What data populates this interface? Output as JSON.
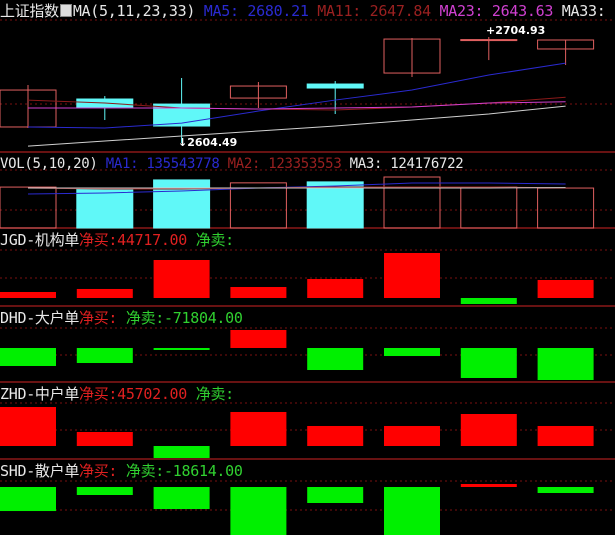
{
  "header": {
    "index_name": "上证指数",
    "ma_title": "MA(5,11,23,33)",
    "ma5": "MA5: 2680.21",
    "ma11": "MA11: 2647.84",
    "ma23": "MA23: 2643.63",
    "ma33": "MA33:",
    "high_marker": "+2704.93",
    "low_marker": "↓2604.49"
  },
  "vol_header": {
    "title": "VOL(5,10,20)",
    "ma1": "MA1: 135543778",
    "ma2": "MA2: 123353553",
    "ma3": "MA3: 124176722"
  },
  "panels": [
    {
      "name": "JGD-机构单",
      "buy_label": "净买:",
      "buy_value": "44717.00",
      "sell_label": "净卖:",
      "sell_value": ""
    },
    {
      "name": "DHD-大户单",
      "buy_label": "净买:",
      "buy_value": "",
      "sell_label": "净卖:",
      "sell_value": "-71804.00"
    },
    {
      "name": "ZHD-中户单",
      "buy_label": "净买:",
      "buy_value": "45702.00",
      "sell_label": "净卖:",
      "sell_value": ""
    },
    {
      "name": "SHD-散户单",
      "buy_label": "净买:",
      "buy_value": "",
      "sell_label": "净卖:",
      "sell_value": "-18614.00"
    }
  ],
  "colors": {
    "up": "#e06060",
    "down": "#60f8f8",
    "ma5": "#2a2ad0",
    "ma11": "#8b1a1a",
    "ma23": "#d040d0",
    "ma33": "#d0d0d0",
    "buy": "#ff0000",
    "sell": "#00f000",
    "grid": "#7a1010"
  },
  "chart_data": [
    {
      "type": "candlestick",
      "title": "上证指数",
      "ylim": [
        2596,
        2740
      ],
      "candles": [
        {
          "open": 2619.7,
          "close": 2654.7,
          "high": 2659.5,
          "low": 2618.7
        },
        {
          "open": 2646.2,
          "close": 2637.7,
          "high": 2649.0,
          "low": 2626.3
        },
        {
          "open": 2641.4,
          "close": 2620.6,
          "high": 2666.1,
          "low": 2604.49
        },
        {
          "open": 2647.1,
          "close": 2658.5,
          "high": 2662.3,
          "low": 2637.7
        },
        {
          "open": 2660.4,
          "close": 2656.6,
          "high": 2663.2,
          "low": 2632.0
        },
        {
          "open": 2670.8,
          "close": 2703.0,
          "high": 2704.0,
          "low": 2667.0
        },
        {
          "open": 2702.0,
          "close": 2702.5,
          "high": 2704.93,
          "low": 2683.1
        },
        {
          "open": 2693.6,
          "close": 2702.1,
          "high": 2702.1,
          "low": 2678.4
        }
      ],
      "series": [
        {
          "name": "MA5",
          "values": [
            2619.7,
            2618.7,
            2623.4,
            2634.8,
            2645.2,
            2654.7,
            2668.9,
            2680.21
          ]
        },
        {
          "name": "MA11",
          "values": [
            2645.2,
            2642.4,
            2637.7,
            2636.7,
            2635.8,
            2638.6,
            2642.4,
            2647.84
          ]
        },
        {
          "name": "MA23",
          "values": [
            2637.7,
            2637.7,
            2637.7,
            2636.7,
            2637.7,
            2638.6,
            2642.4,
            2643.63
          ]
        },
        {
          "name": "MA33",
          "values": [
            2601.6,
            2606.4,
            2611.1,
            2615.9,
            2620.6,
            2626.3,
            2632.0,
            2639.5
          ]
        }
      ]
    },
    {
      "type": "bar",
      "title": "VOL(5,10,20)",
      "ylim": [
        0,
        234000000
      ],
      "values": [
        126000000,
        123000000,
        148000000,
        139000000,
        142000000,
        157000000,
        126000000,
        123000000
      ],
      "series": [
        {
          "name": "MA1",
          "values": [
            104700000,
            107800000,
            114000000,
            123200000,
            129400000,
            138600000,
            138600000,
            135543778
          ]
        },
        {
          "name": "MA2",
          "values": [
            123200000,
            120100000,
            120100000,
            123200000,
            126300000,
            126300000,
            126300000,
            123353553
          ]
        },
        {
          "name": "MA3",
          "values": [
            123200000,
            123200000,
            123200000,
            123200000,
            123200000,
            123200000,
            123200000,
            124176722
          ]
        }
      ]
    },
    {
      "type": "bar",
      "title": "JGD-机构单",
      "ylim": [
        -19900,
        173900
      ],
      "values": [
        14900,
        22400,
        94400,
        27300,
        47200,
        111800,
        -14900,
        44717
      ]
    },
    {
      "type": "bar",
      "title": "DHD-大户单",
      "ylim": [
        -76300,
        94200
      ],
      "values": [
        -40400,
        -33700,
        -4500,
        40400,
        -49400,
        -18000,
        -67300,
        -71804
      ]
    },
    {
      "type": "bar",
      "title": "ZHD-中户单",
      "ylim": [
        -29700,
        146200
      ],
      "values": [
        89100,
        32000,
        -27400,
        77700,
        45700,
        45700,
        73100,
        45702
      ]
    },
    {
      "type": "bar",
      "title": "SHD-散户单",
      "ylim": [
        -148800,
        86800
      ],
      "values": [
        -74500,
        -24800,
        -68300,
        -150000,
        -49600,
        -150000,
        9300,
        -18614
      ]
    }
  ]
}
